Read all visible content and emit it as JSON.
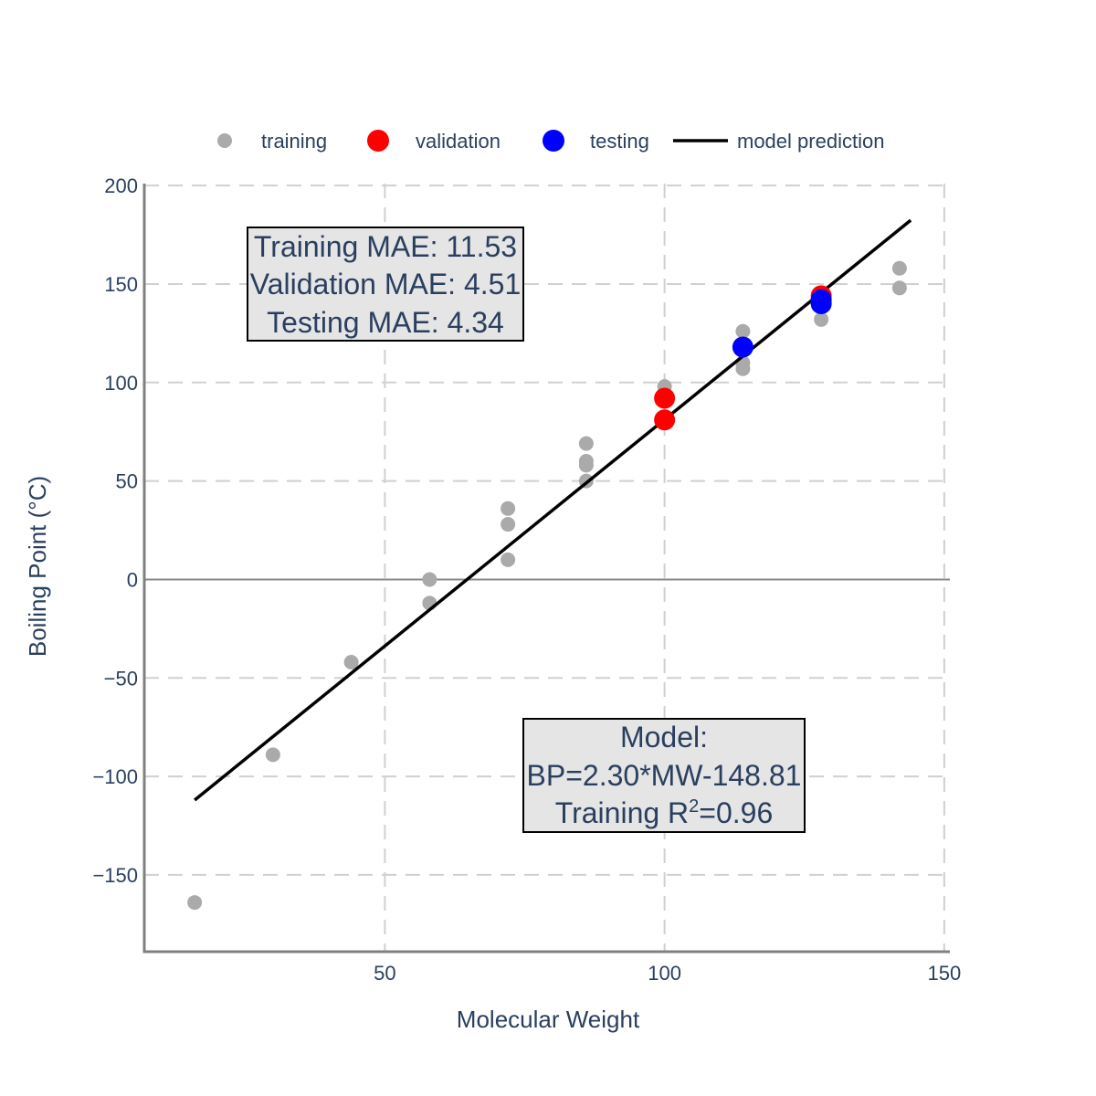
{
  "chart_data": {
    "type": "scatter",
    "xlabel": "Molecular Weight",
    "ylabel": "Boiling Point (°C)",
    "xlim": [
      7,
      151
    ],
    "ylim": [
      -189,
      201
    ],
    "x_ticks": [
      50,
      100,
      150
    ],
    "y_ticks": [
      200,
      150,
      100,
      50,
      0,
      -50,
      -100,
      -150
    ],
    "x_tick_labels": [
      "50",
      "100",
      "150"
    ],
    "y_tick_labels": [
      "200",
      "150",
      "100",
      "50",
      "0",
      "−50",
      "−100",
      "−150"
    ],
    "grid": true,
    "legend_position": "top",
    "series": [
      {
        "name": "training",
        "color": "#aaaaaa",
        "marker": "circle",
        "points": [
          [
            16,
            -164
          ],
          [
            30,
            -89
          ],
          [
            44,
            -42
          ],
          [
            58,
            0
          ],
          [
            58,
            -12
          ],
          [
            72,
            36
          ],
          [
            72,
            28
          ],
          [
            72,
            10
          ],
          [
            86,
            69
          ],
          [
            86,
            60
          ],
          [
            86,
            58
          ],
          [
            86,
            50
          ],
          [
            100,
            98
          ],
          [
            114,
            126
          ],
          [
            114,
            110
          ],
          [
            114,
            107
          ],
          [
            128,
            142
          ],
          [
            128,
            132
          ],
          [
            142,
            158
          ],
          [
            142,
            148
          ]
        ]
      },
      {
        "name": "validation",
        "color": "#ff0000",
        "marker": "circle",
        "points": [
          [
            100,
            92
          ],
          [
            100,
            81
          ],
          [
            128,
            144
          ]
        ]
      },
      {
        "name": "testing",
        "color": "#0000ff",
        "marker": "circle",
        "points": [
          [
            114,
            118
          ],
          [
            128,
            142
          ],
          [
            128,
            140
          ]
        ]
      },
      {
        "name": "model prediction",
        "color": "#000000",
        "marker": "line",
        "line": [
          [
            16,
            -112.01
          ],
          [
            144,
            182.39
          ]
        ]
      }
    ],
    "annotations": {
      "mae_box": {
        "lines": [
          "Training MAE: 11.53",
          "Validation MAE: 4.51",
          "Testing MAE: 4.34"
        ]
      },
      "model_box": {
        "line1": "Model:",
        "line2": "BP=2.30*MW-148.81",
        "line3_prefix": "Training R",
        "line3_sup": "2",
        "line3_suffix": "=0.96"
      }
    }
  }
}
